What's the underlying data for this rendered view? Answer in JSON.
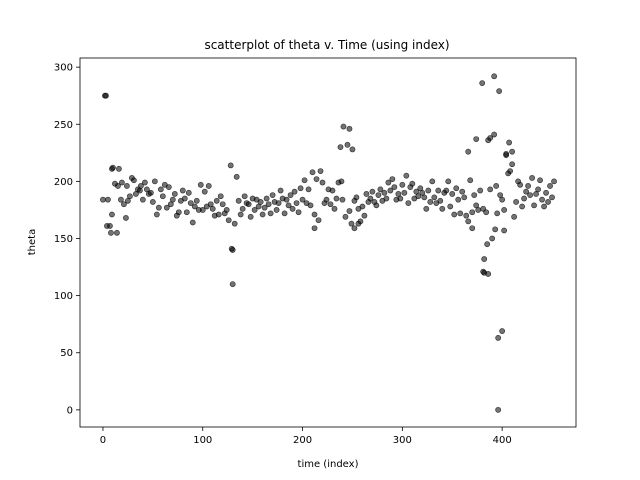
{
  "chart_data": {
    "type": "scatter",
    "title": "scatterplot of theta v. Time (using index)",
    "xlabel": "time (index)",
    "ylabel": "theta",
    "xlim": [
      -23,
      474
    ],
    "ylim": [
      -15,
      308
    ],
    "xticks": [
      0,
      100,
      200,
      300,
      400
    ],
    "yticks": [
      0,
      50,
      100,
      150,
      200,
      250,
      300
    ],
    "grid": false,
    "legend": "none",
    "marker_color": "#000000",
    "marker_opacity": 0.55,
    "series": [
      {
        "x": [
          0,
          2,
          3,
          4,
          5,
          7,
          9,
          10,
          12,
          14,
          15,
          16,
          18,
          19,
          21,
          23,
          24,
          25,
          27,
          29,
          31,
          33,
          35,
          37,
          38,
          40,
          42,
          44,
          46,
          48,
          50,
          52,
          54,
          56,
          58,
          60,
          62,
          64,
          66,
          68,
          70,
          72,
          74,
          76,
          78,
          80,
          82,
          84,
          86,
          88,
          90,
          92,
          94,
          96,
          98,
          100,
          102,
          104,
          106,
          108,
          110,
          112,
          114,
          116,
          118,
          120,
          122,
          124,
          126,
          128,
          129,
          130,
          132,
          134,
          136,
          138,
          140,
          142,
          144,
          146,
          148,
          150,
          152,
          154,
          156,
          158,
          160,
          162,
          164,
          166,
          168,
          170,
          172,
          174,
          176,
          178,
          180,
          182,
          184,
          186,
          188,
          190,
          192,
          194,
          196,
          198,
          200,
          202,
          204,
          206,
          208,
          210,
          212,
          214,
          216,
          218,
          220,
          222,
          224,
          226,
          228,
          230,
          232,
          234,
          236,
          238,
          239,
          240,
          241,
          243,
          245,
          247,
          249,
          250,
          252,
          254,
          256,
          258,
          260,
          262,
          264,
          266,
          268,
          270,
          272,
          274,
          276,
          278,
          280,
          282,
          284,
          286,
          288,
          290,
          292,
          294,
          296,
          298,
          300,
          302,
          304,
          306,
          308,
          310,
          312,
          314,
          316,
          318,
          320,
          322,
          324,
          326,
          328,
          330,
          332,
          334,
          336,
          338,
          340,
          342,
          344,
          346,
          348,
          350,
          352,
          354,
          356,
          358,
          360,
          362,
          364,
          366,
          368,
          370,
          372,
          374,
          376,
          378,
          380,
          381,
          382,
          384,
          385,
          386,
          388,
          390,
          392,
          393,
          394,
          395,
          396,
          397,
          398,
          400,
          402,
          404,
          406,
          408,
          410,
          412,
          414,
          416,
          418,
          420,
          422,
          424,
          426,
          428,
          430,
          432,
          434,
          436,
          438,
          440,
          442,
          444,
          446,
          448,
          450,
          452
        ],
        "y": [
          184,
          275,
          275,
          161,
          184,
          161,
          171,
          212,
          198,
          155,
          196,
          211,
          184,
          199,
          180,
          168,
          196,
          183,
          187,
          203,
          201,
          189,
          193,
          192,
          196,
          184,
          199,
          193,
          189,
          190,
          182,
          200,
          171,
          177,
          193,
          187,
          197,
          177,
          195,
          180,
          184,
          189,
          170,
          173,
          183,
          192,
          185,
          173,
          190,
          181,
          164,
          178,
          183,
          175,
          197,
          175,
          191,
          178,
          196,
          180,
          176,
          170,
          183,
          171,
          187,
          180,
          172,
          175,
          166,
          214,
          141,
          110,
          163,
          204,
          183,
          171,
          176,
          187,
          181,
          180,
          169,
          185,
          175,
          184,
          178,
          182,
          171,
          177,
          185,
          180,
          172,
          188,
          182,
          175,
          181,
          192,
          185,
          172,
          184,
          179,
          188,
          176,
          191,
          181,
          173,
          194,
          184,
          201,
          181,
          193,
          179,
          208,
          171,
          202,
          166,
          209,
          199,
          181,
          184,
          193,
          180,
          192,
          176,
          185,
          199,
          230,
          200,
          184,
          248,
          169,
          232,
          174,
          163,
          228,
          183,
          186,
          176,
          165,
          178,
          170,
          189,
          182,
          185,
          191,
          182,
          179,
          188,
          193,
          183,
          190,
          185,
          199,
          192,
          202,
          195,
          184,
          189,
          185,
          197,
          190,
          205,
          181,
          195,
          198,
          185,
          191,
          187,
          194,
          190,
          186,
          176,
          192,
          182,
          200,
          186,
          181,
          192,
          183,
          176,
          190,
          192,
          200,
          178,
          189,
          171,
          194,
          184,
          172,
          191,
          186,
          170,
          165,
          201,
          173,
          188,
          179,
          175,
          192,
          286,
          176,
          132,
          173,
          145,
          119,
          193,
          150,
          292,
          158,
          196,
          172,
          63,
          279,
          188,
          184,
          175,
          223,
          207,
          209,
          226,
          169,
          182,
          200,
          197,
          178,
          185,
          191,
          196,
          188,
          203,
          179,
          189,
          193,
          201,
          184,
          178,
          190,
          182,
          196,
          186,
          200
        ],
        "y_extra": [
          {
            "x": 381,
            "y": 121
          },
          {
            "x": 382,
            "y": 120
          },
          {
            "x": 386,
            "y": 236
          },
          {
            "x": 388,
            "y": 238
          },
          {
            "x": 392,
            "y": 241
          },
          {
            "x": 396,
            "y": 0
          },
          {
            "x": 400,
            "y": 69
          },
          {
            "x": 402,
            "y": 157
          },
          {
            "x": 404,
            "y": 224
          },
          {
            "x": 407,
            "y": 234
          },
          {
            "x": 410,
            "y": 215
          },
          {
            "x": 374,
            "y": 237
          },
          {
            "x": 366,
            "y": 226
          },
          {
            "x": 370,
            "y": 159
          },
          {
            "x": 247,
            "y": 246
          },
          {
            "x": 252,
            "y": 159
          },
          {
            "x": 256,
            "y": 163
          },
          {
            "x": 212,
            "y": 159
          },
          {
            "x": 130,
            "y": 140
          },
          {
            "x": 9,
            "y": 211
          },
          {
            "x": 8,
            "y": 155
          }
        ]
      }
    ]
  }
}
